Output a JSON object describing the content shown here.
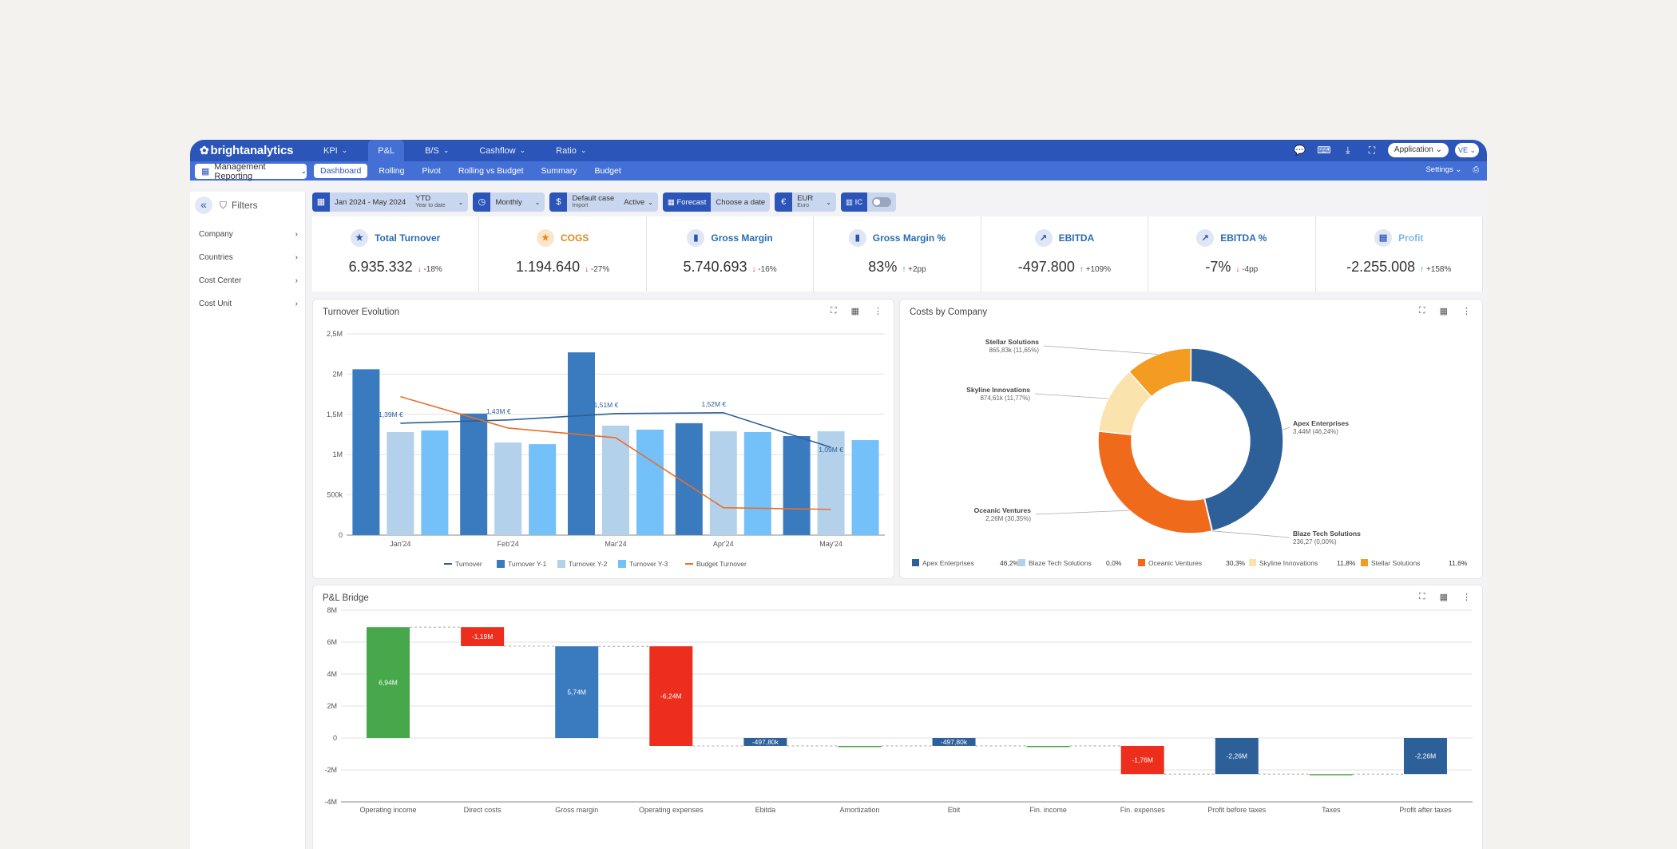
{
  "brand": "brightanalytics",
  "main_nav": [
    {
      "label": "KPI",
      "active": false,
      "dropdown": true
    },
    {
      "label": "P&L",
      "active": true,
      "dropdown": false
    },
    {
      "label": "B/S",
      "active": false,
      "dropdown": true
    },
    {
      "label": "Cashflow",
      "active": false,
      "dropdown": true
    },
    {
      "label": "Ratio",
      "active": false,
      "dropdown": true
    }
  ],
  "top_right": {
    "app_selector": "Application",
    "avatar": "VE"
  },
  "report_selector": "Management Reporting",
  "sub_nav": [
    {
      "label": "Dashboard",
      "active": true
    },
    {
      "label": "Rolling",
      "active": false
    },
    {
      "label": "Pivot",
      "active": false
    },
    {
      "label": "Rolling vs Budget",
      "active": false
    },
    {
      "label": "Summary",
      "active": false
    },
    {
      "label": "Budget",
      "active": false
    }
  ],
  "settings_label": "Settings",
  "filters": {
    "title": "Filters",
    "items": [
      "Company",
      "Countries",
      "Cost Center",
      "Cost Unit"
    ]
  },
  "toolbar": {
    "period": "Jan 2024 - May 2024",
    "period_mode": "YTD",
    "period_mode_sub": "Year to date",
    "granularity": "Monthly",
    "scenario": "Default case",
    "scenario_sub": "Import",
    "status": "Active",
    "forecast": "Forecast",
    "forecast_date": "Choose a date",
    "currency": "EUR",
    "currency_sub": "Euro",
    "ic": "IC"
  },
  "kpis": [
    {
      "title": "Total Turnover",
      "value": "6.935.332",
      "delta": "-18%",
      "dir": "down",
      "icon": "star-icon",
      "color": "#2b6cb0"
    },
    {
      "title": "COGS",
      "value": "1.194.640",
      "delta": "-27%",
      "dir": "down",
      "icon": "star-icon",
      "color": "#e08a1e"
    },
    {
      "title": "Gross Margin",
      "value": "5.740.693",
      "delta": "-16%",
      "dir": "down",
      "icon": "bar-chart-icon",
      "color": "#2b6cb0"
    },
    {
      "title": "Gross Margin %",
      "value": "83%",
      "delta": "+2pp",
      "dir": "up",
      "icon": "bar-chart-icon",
      "color": "#2b6cb0"
    },
    {
      "title": "EBITDA",
      "value": "-497.800",
      "delta": "+109%",
      "dir": "up",
      "icon": "trend-icon",
      "color": "#2b6cb0"
    },
    {
      "title": "EBITDA %",
      "value": "-7%",
      "delta": "-4pp",
      "dir": "down",
      "icon": "trend-icon",
      "color": "#2b6cb0"
    },
    {
      "title": "Profit",
      "value": "-2.255.008",
      "delta": "+158%",
      "dir": "up",
      "icon": "chart-icon",
      "color": "#7fb7e6"
    }
  ],
  "chart_data": [
    {
      "type": "bar",
      "title": "Turnover Evolution",
      "categories": [
        "Jan'24",
        "Feb'24",
        "Mar'24",
        "Apr'24",
        "May'24"
      ],
      "ylim": [
        0,
        2500000
      ],
      "yticks": [
        "0",
        "500k",
        "1M",
        "1,5M",
        "2M",
        "2,5M"
      ],
      "series": [
        {
          "name": "Turnover Y-1",
          "kind": "bar",
          "color": "#3a7bbf",
          "values": [
            2060000,
            1510000,
            2270000,
            1390000,
            1230000
          ]
        },
        {
          "name": "Turnover Y-2",
          "kind": "bar",
          "color": "#b3d1ea",
          "values": [
            1280000,
            1150000,
            1360000,
            1290000,
            1290000
          ]
        },
        {
          "name": "Turnover Y-3",
          "kind": "bar",
          "color": "#74c0f8",
          "values": [
            1300000,
            1130000,
            1310000,
            1280000,
            1180000
          ]
        },
        {
          "name": "Turnover",
          "kind": "line",
          "color": "#2d5f99",
          "values": [
            1390000,
            1430000,
            1510000,
            1520000,
            1090000
          ]
        },
        {
          "name": "Budget Turnover",
          "kind": "line",
          "color": "#e8702a",
          "values": [
            1720000,
            1330000,
            1210000,
            340000,
            320000
          ]
        }
      ],
      "data_labels": [
        "1,39M €",
        "1,43M €",
        "1,51M €",
        "1,52M €",
        "1,09M €"
      ],
      "legend": "bottom"
    },
    {
      "type": "pie",
      "title": "Costs by Company",
      "slices": [
        {
          "name": "Apex Enterprises",
          "value": 3440000,
          "label": "3,44M (46,24%)",
          "pct": "46,2%",
          "color": "#2d5f99"
        },
        {
          "name": "Blaze Tech Solutions",
          "value": 236.27,
          "label": "236,27 (0,00%)",
          "pct": "0,0%",
          "color": "#b3d1ea"
        },
        {
          "name": "Oceanic Ventures",
          "value": 2260000,
          "label": "2,26M (30,35%)",
          "pct": "30,3%",
          "color": "#f06a1c"
        },
        {
          "name": "Skyline Innovations",
          "value": 874610,
          "label": "874,61k (11,77%)",
          "pct": "11,8%",
          "color": "#fbe3ae"
        },
        {
          "name": "Stellar Solutions",
          "value": 865830,
          "label": "865,83k (11,65%)",
          "pct": "11,6%",
          "color": "#f39c21"
        }
      ],
      "legend": "bottom"
    },
    {
      "type": "bar",
      "title": "P&L Bridge",
      "subtype": "waterfall",
      "ylim": [
        -4000000,
        8000000
      ],
      "yticks": [
        "-4M",
        "-2M",
        "0",
        "2M",
        "4M",
        "6M",
        "8M"
      ],
      "steps": [
        {
          "name": "Operating income",
          "start": 0,
          "end": 6940000,
          "label": "6,94M",
          "color": "#46a84a"
        },
        {
          "name": "Direct costs",
          "start": 6940000,
          "end": 5750000,
          "label": "-1,19M",
          "color": "#ee2e1c"
        },
        {
          "name": "Gross margin",
          "start": 0,
          "end": 5740000,
          "label": "5,74M",
          "color": "#3a7bbf"
        },
        {
          "name": "Operating expenses",
          "start": 5740000,
          "end": -500000,
          "label": "-6,24M",
          "color": "#ee2e1c"
        },
        {
          "name": "Ebitda",
          "start": 0,
          "end": -497800,
          "label": "-497,80k",
          "color": "#2d5f99"
        },
        {
          "name": "Amortization",
          "start": -497800,
          "end": -497800,
          "label": "",
          "color": "#46a84a"
        },
        {
          "name": "Ebit",
          "start": 0,
          "end": -497800,
          "label": "-497,80k",
          "color": "#2d5f99"
        },
        {
          "name": "Fin. income",
          "start": -497800,
          "end": -497800,
          "label": "",
          "color": "#46a84a"
        },
        {
          "name": "Fin. expenses",
          "start": -497800,
          "end": -2260000,
          "label": "-1,76M",
          "color": "#ee2e1c"
        },
        {
          "name": "Profit before taxes",
          "start": 0,
          "end": -2260000,
          "label": "-2,26M",
          "color": "#2d5f99"
        },
        {
          "name": "Taxes",
          "start": -2260000,
          "end": -2260000,
          "label": "",
          "color": "#46a84a"
        },
        {
          "name": "Profit after taxes",
          "start": 0,
          "end": -2260000,
          "label": "-2,26M",
          "color": "#2d5f99"
        }
      ]
    }
  ]
}
